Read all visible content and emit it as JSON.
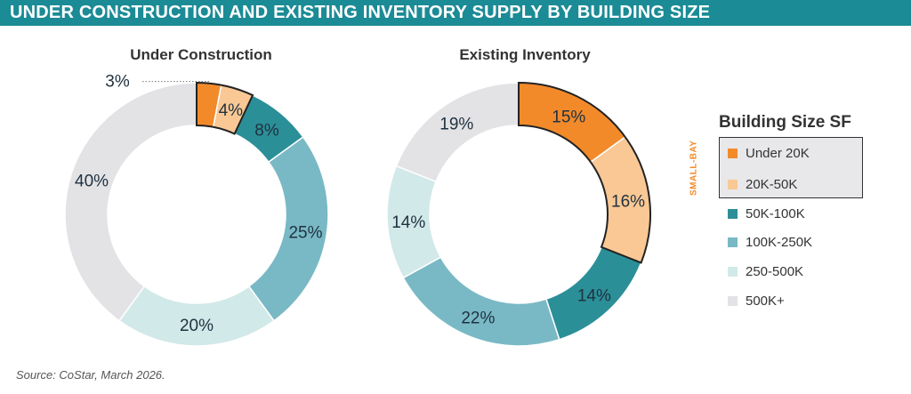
{
  "header": {
    "title": "UNDER CONSTRUCTION AND EXISTING INVENTORY SUPPLY BY BUILDING SIZE"
  },
  "legend": {
    "title": "Building Size SF",
    "group_label": "SMALL-BAY",
    "items": [
      {
        "label": "Under 20K",
        "color": "#f28a2a"
      },
      {
        "label": "20K-50K",
        "color": "#f9c894"
      },
      {
        "label": "50K-100K",
        "color": "#2b8f98"
      },
      {
        "label": "100K-250K",
        "color": "#79b9c5"
      },
      {
        "label": "250-500K",
        "color": "#d1e9e8"
      },
      {
        "label": "500K+",
        "color": "#e3e2e5"
      }
    ]
  },
  "source": "Source: CoStar, March 2026.",
  "chart_data": [
    {
      "type": "pie",
      "title": "Under Construction",
      "categories": [
        "Under 20K",
        "20K-50K",
        "50K-100K",
        "100K-250K",
        "250-500K",
        "500K+"
      ],
      "values": [
        3,
        4,
        8,
        25,
        20,
        40
      ],
      "labels": [
        "3%",
        "4%",
        "8%",
        "25%",
        "20%",
        "40%"
      ],
      "highlighted": [
        "Under 20K",
        "20K-50K"
      ]
    },
    {
      "type": "pie",
      "title": "Existing Inventory",
      "categories": [
        "Under 20K",
        "20K-50K",
        "50K-100K",
        "100K-250K",
        "250-500K",
        "500K+"
      ],
      "values": [
        15,
        16,
        14,
        22,
        14,
        19
      ],
      "labels": [
        "15%",
        "16%",
        "14%",
        "22%",
        "14%",
        "19%"
      ],
      "highlighted": [
        "Under 20K",
        "20K-50K"
      ]
    }
  ]
}
